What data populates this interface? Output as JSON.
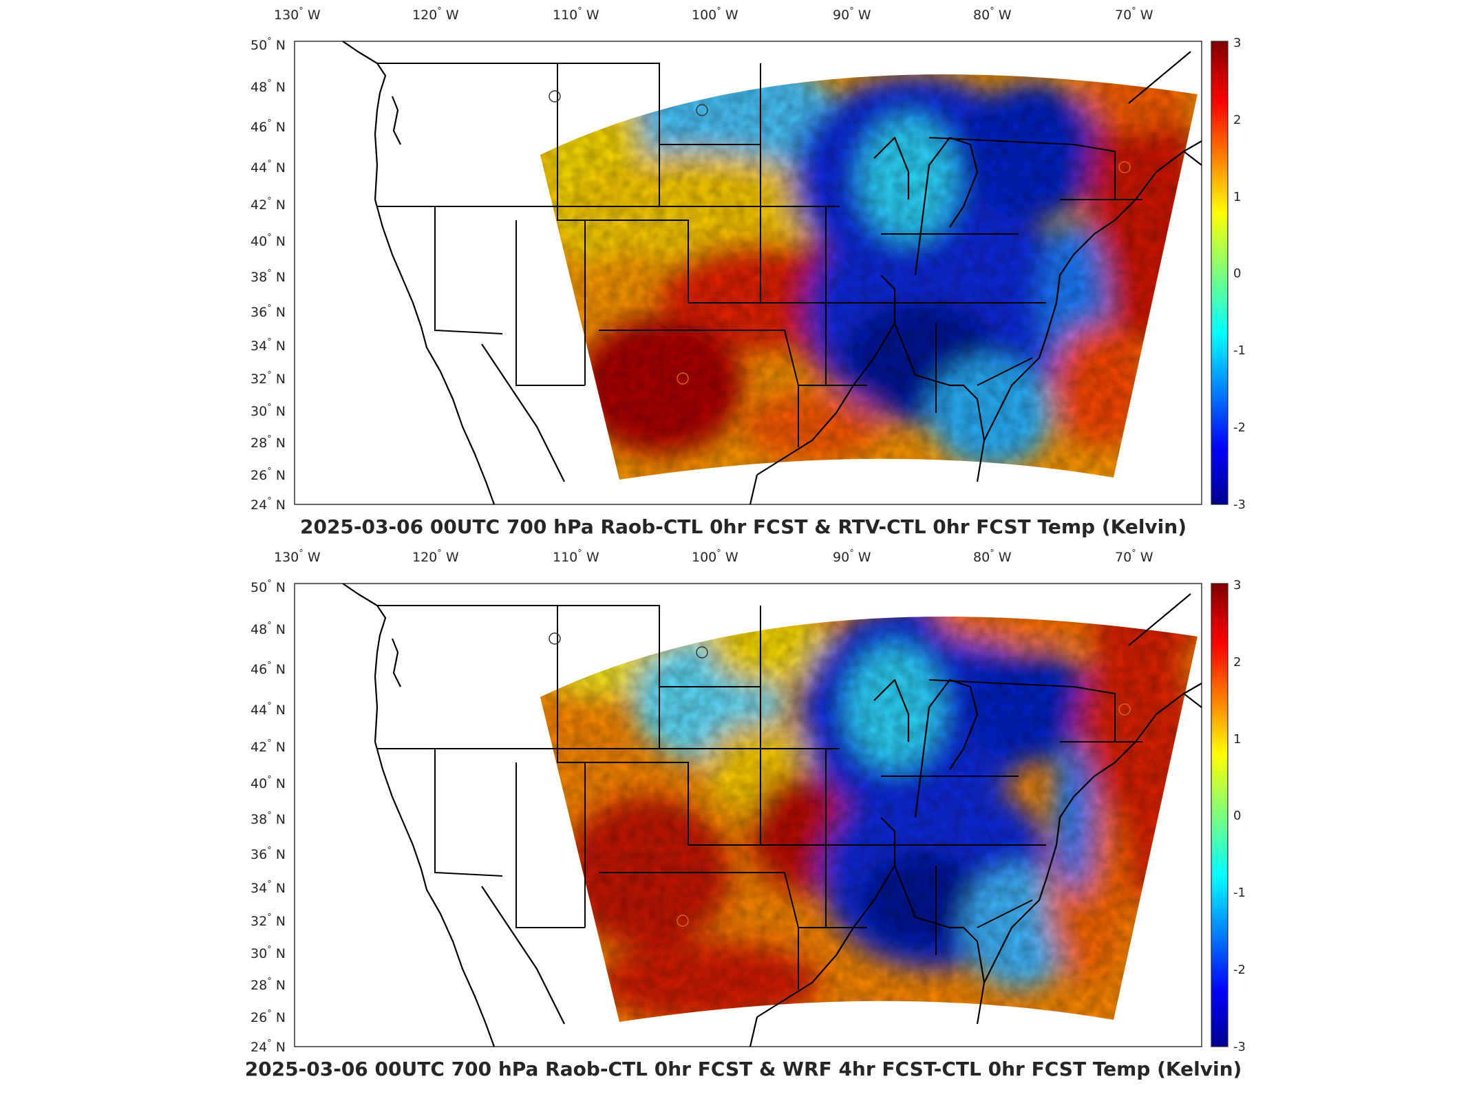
{
  "panels": [
    {
      "title": "2025-03-06 00UTC 700 hPa Raob-CTL 0hr FCST & RTV-CTL 0hr FCST Temp (Kelvin)"
    },
    {
      "title": "2025-03-06 00UTC 700 hPa Raob-CTL 0hr FCST & WRF 4hr FCST-CTL 0hr FCST Temp (Kelvin)"
    }
  ],
  "lon_labels": [
    {
      "value": "130",
      "hemi": "W"
    },
    {
      "value": "120",
      "hemi": "W"
    },
    {
      "value": "110",
      "hemi": "W"
    },
    {
      "value": "100",
      "hemi": "W"
    },
    {
      "value": "90",
      "hemi": "W"
    },
    {
      "value": "80",
      "hemi": "W"
    },
    {
      "value": "70",
      "hemi": "W"
    }
  ],
  "lat_labels": [
    {
      "value": "50",
      "hemi": "N"
    },
    {
      "value": "48",
      "hemi": "N"
    },
    {
      "value": "46",
      "hemi": "N"
    },
    {
      "value": "44",
      "hemi": "N"
    },
    {
      "value": "42",
      "hemi": "N"
    },
    {
      "value": "40",
      "hemi": "N"
    },
    {
      "value": "38",
      "hemi": "N"
    },
    {
      "value": "36",
      "hemi": "N"
    },
    {
      "value": "34",
      "hemi": "N"
    },
    {
      "value": "32",
      "hemi": "N"
    },
    {
      "value": "30",
      "hemi": "N"
    },
    {
      "value": "28",
      "hemi": "N"
    },
    {
      "value": "26",
      "hemi": "N"
    },
    {
      "value": "24",
      "hemi": "N"
    }
  ],
  "colorbar": {
    "ticks": [
      "3",
      "2",
      "1",
      "0",
      "-1",
      "-2",
      "-3"
    ],
    "range": [
      -3,
      3
    ],
    "colormap": "jet"
  },
  "colors": {
    "dark_blue": "#00008f",
    "blue": "#0050ff",
    "cyan": "#33d6ff",
    "yellow": "#ffe600",
    "orange": "#ff7a00",
    "red": "#e01500",
    "dark_red": "#870000",
    "station_marker": "#d2691e"
  }
}
